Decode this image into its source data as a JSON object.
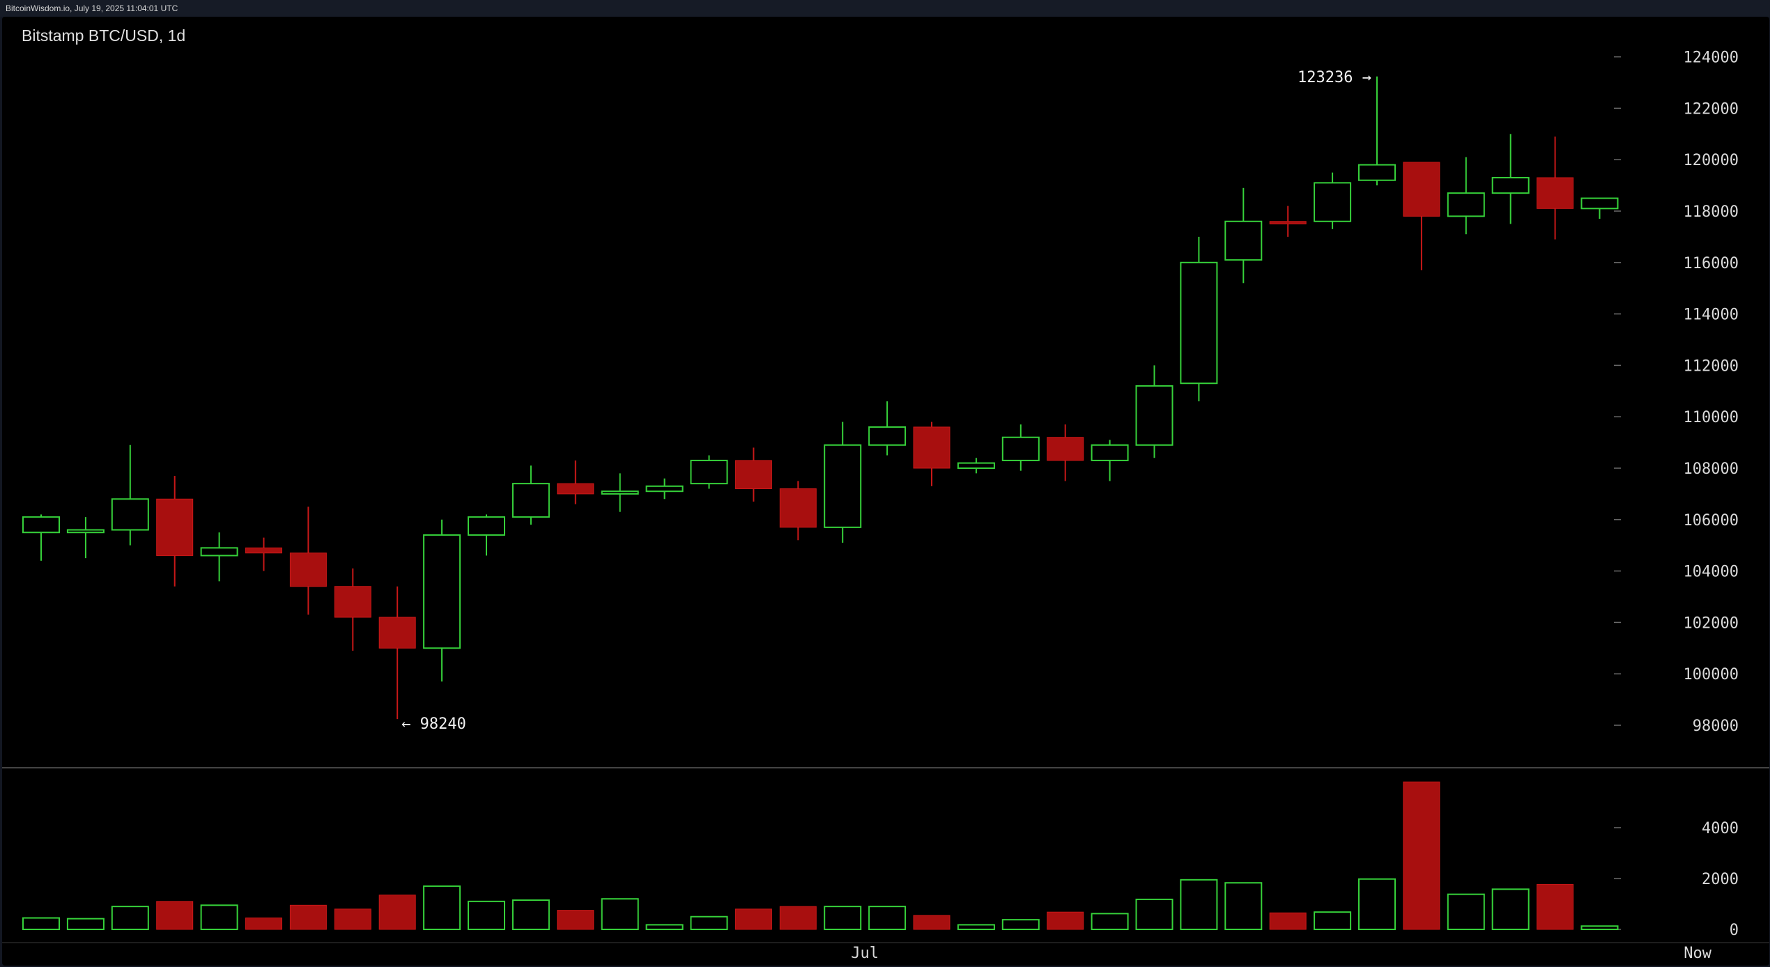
{
  "header": {
    "source": "BitcoinWisdom.io, July 19, 2025 11:04:01 UTC"
  },
  "chart": {
    "title": "Bitstamp BTC/USD, 1d",
    "colors": {
      "up": "#36d13a",
      "down": "#a80f0f",
      "down_wick": "#c81818",
      "text": "#d9d9d9",
      "tick": "#6b6b6b",
      "separator": "#5a5a5a",
      "background": "#000000"
    },
    "annotations": {
      "high_label": "123236 →",
      "low_label": "← 98240"
    },
    "x_axis": {
      "labels": [
        "Jul",
        "Now"
      ]
    }
  },
  "chart_data": [
    {
      "type": "candlestick",
      "title": "Bitstamp BTC/USD, 1d",
      "ylim": [
        97000,
        125200
      ],
      "y_ticks": [
        98000,
        100000,
        102000,
        104000,
        106000,
        108000,
        110000,
        112000,
        114000,
        116000,
        118000,
        120000,
        122000,
        124000
      ],
      "annotations": [
        {
          "text": "123236 →",
          "value": 123236,
          "candle_index": 30
        },
        {
          "text": "← 98240",
          "value": 98240,
          "candle_index": 8
        }
      ],
      "candles": [
        {
          "open": 105500,
          "high": 106200,
          "low": 104400,
          "close": 106100
        },
        {
          "open": 105500,
          "high": 106100,
          "low": 104500,
          "close": 105600
        },
        {
          "open": 105600,
          "high": 108900,
          "low": 105000,
          "close": 106800
        },
        {
          "open": 106800,
          "high": 107700,
          "low": 103400,
          "close": 104600
        },
        {
          "open": 104600,
          "high": 105500,
          "low": 103600,
          "close": 104900
        },
        {
          "open": 104900,
          "high": 105300,
          "low": 104000,
          "close": 104700
        },
        {
          "open": 104700,
          "high": 106500,
          "low": 102300,
          "close": 103400
        },
        {
          "open": 103400,
          "high": 104100,
          "low": 100900,
          "close": 102200
        },
        {
          "open": 102200,
          "high": 103400,
          "low": 98240,
          "close": 101000
        },
        {
          "open": 101000,
          "high": 106000,
          "low": 99700,
          "close": 105400
        },
        {
          "open": 105400,
          "high": 106200,
          "low": 104600,
          "close": 106100
        },
        {
          "open": 106100,
          "high": 108100,
          "low": 105800,
          "close": 107400
        },
        {
          "open": 107400,
          "high": 108300,
          "low": 106600,
          "close": 107000
        },
        {
          "open": 107000,
          "high": 107800,
          "low": 106300,
          "close": 107100
        },
        {
          "open": 107100,
          "high": 107600,
          "low": 106800,
          "close": 107300
        },
        {
          "open": 107400,
          "high": 108500,
          "low": 107200,
          "close": 108300
        },
        {
          "open": 108300,
          "high": 108800,
          "low": 106700,
          "close": 107200
        },
        {
          "open": 107200,
          "high": 107500,
          "low": 105200,
          "close": 105700
        },
        {
          "open": 105700,
          "high": 109800,
          "low": 105100,
          "close": 108900
        },
        {
          "open": 108900,
          "high": 110600,
          "low": 108500,
          "close": 109600
        },
        {
          "open": 109600,
          "high": 109800,
          "low": 107300,
          "close": 108000
        },
        {
          "open": 108000,
          "high": 108400,
          "low": 107800,
          "close": 108200
        },
        {
          "open": 108300,
          "high": 109700,
          "low": 107900,
          "close": 109200
        },
        {
          "open": 109200,
          "high": 109700,
          "low": 107500,
          "close": 108300
        },
        {
          "open": 108300,
          "high": 109100,
          "low": 107500,
          "close": 108900
        },
        {
          "open": 108900,
          "high": 112000,
          "low": 108400,
          "close": 111200
        },
        {
          "open": 111300,
          "high": 117000,
          "low": 110600,
          "close": 116000
        },
        {
          "open": 116100,
          "high": 118900,
          "low": 115200,
          "close": 117600
        },
        {
          "open": 117600,
          "high": 118200,
          "low": 117000,
          "close": 117500
        },
        {
          "open": 117600,
          "high": 119500,
          "low": 117300,
          "close": 119100
        },
        {
          "open": 119200,
          "high": 123236,
          "low": 119000,
          "close": 119800
        },
        {
          "open": 119900,
          "high": 119900,
          "low": 115700,
          "close": 117800
        },
        {
          "open": 117800,
          "high": 120100,
          "low": 117100,
          "close": 118700
        },
        {
          "open": 118700,
          "high": 121000,
          "low": 117500,
          "close": 119300
        },
        {
          "open": 119300,
          "high": 120900,
          "low": 116900,
          "close": 118100
        },
        {
          "open": 118100,
          "high": 118500,
          "low": 117700,
          "close": 118500
        }
      ],
      "x_labels": [
        {
          "text": "Jul",
          "candle_index": 18.5
        },
        {
          "text": "Now",
          "candle_index": 37.2
        }
      ]
    },
    {
      "type": "bar",
      "series": [
        {
          "values": [
            450,
            420,
            900,
            1100,
            950,
            450,
            950,
            800,
            1350,
            1700,
            1100,
            1150,
            750,
            1200,
            180,
            500,
            800,
            900,
            900,
            900,
            550,
            180,
            380,
            680,
            620,
            1180,
            1950,
            1830,
            650,
            680,
            1980,
            5800,
            1380,
            1580,
            1770,
            130
          ]
        }
      ],
      "ylim": [
        0,
        6000
      ],
      "y_ticks": [
        0,
        2000,
        4000
      ]
    }
  ]
}
